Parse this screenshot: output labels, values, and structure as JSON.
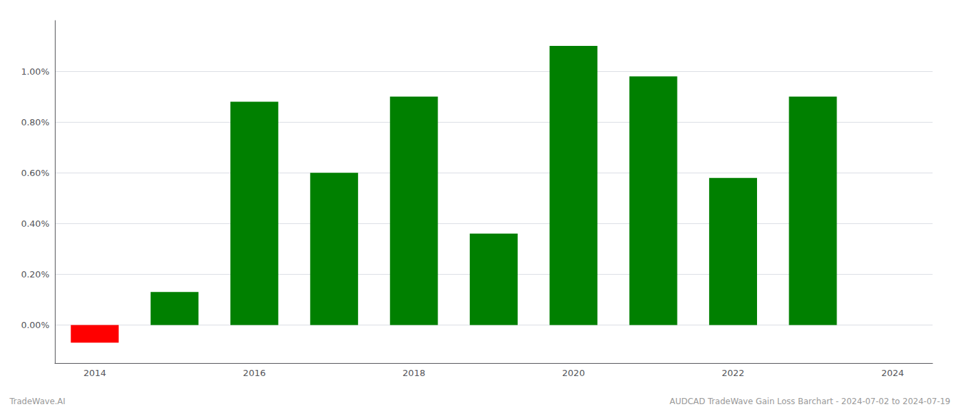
{
  "chart_data": {
    "type": "bar",
    "categories": [
      "2014",
      null,
      "2016",
      null,
      "2018",
      null,
      "2020",
      null,
      "2022",
      null,
      "2024"
    ],
    "values": [
      -0.0007,
      0.0013,
      0.0088,
      0.006,
      0.009,
      0.0036,
      0.011,
      0.0098,
      0.0058,
      0.009,
      null
    ],
    "colors": [
      "#ff0000",
      "#008000",
      "#008000",
      "#008000",
      "#008000",
      "#008000",
      "#008000",
      "#008000",
      "#008000",
      "#008000",
      null
    ],
    "ylim": [
      -0.0015,
      0.012
    ],
    "yticks": [
      {
        "value": 0.0,
        "label": "0.00%"
      },
      {
        "value": 0.002,
        "label": "0.20%"
      },
      {
        "value": 0.004,
        "label": "0.40%"
      },
      {
        "value": 0.006,
        "label": "0.60%"
      },
      {
        "value": 0.008,
        "label": "0.80%"
      },
      {
        "value": 0.01,
        "label": "1.00%"
      }
    ],
    "grid": true,
    "annotations": [
      "TradeWave.AI",
      "AUDCAD TradeWave Gain Loss Barchart - 2024-07-02 to 2024-07-19"
    ]
  }
}
